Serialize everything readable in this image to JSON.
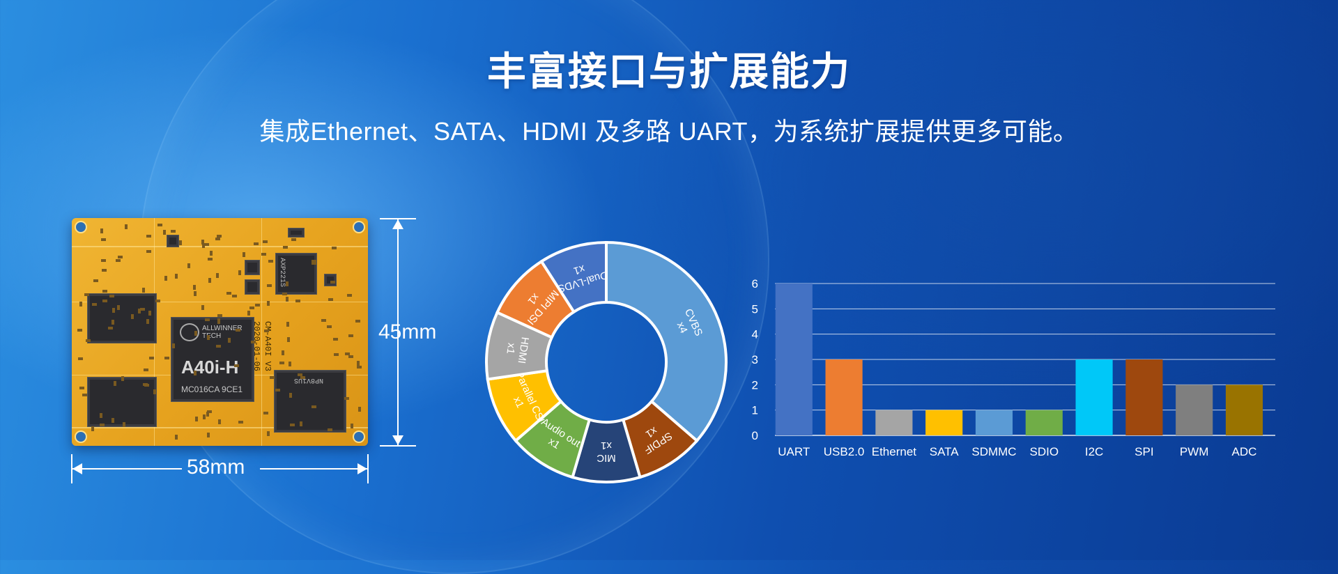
{
  "header": {
    "title": "丰富接口与扩展能力",
    "subtitle": "集成Ethernet、SATA、HDMI 及多路 UART，为系统扩展提供更多可能。"
  },
  "board": {
    "chip_brand_line1": "ALLWINNER",
    "chip_brand_line2": "TECH",
    "chip_model": "A40i-H",
    "chip_code": "MC016CA 9CE1",
    "side_text_date": "2020-01-06",
    "side_text_version": "CM-A40I V3",
    "pmic_label": "AXP221S",
    "flash_label": "NP8V1US",
    "width_label": "58mm",
    "height_label": "45mm"
  },
  "chart_data": [
    {
      "type": "pie",
      "donut": true,
      "slices": [
        {
          "label": "CVBS",
          "count_label": "x4",
          "value": 4,
          "color": "#5b9bd5"
        },
        {
          "label": "SPDIF",
          "count_label": "x1",
          "value": 1,
          "color": "#9e480e"
        },
        {
          "label": "MIC",
          "count_label": "x1",
          "value": 1,
          "color": "#264478"
        },
        {
          "label": "Audio out",
          "count_label": "x1",
          "value": 1,
          "color": "#70ad47"
        },
        {
          "label": "Parallel CSI",
          "count_label": "x1",
          "value": 1,
          "color": "#ffc000"
        },
        {
          "label": "HDMI",
          "count_label": "x1",
          "value": 1,
          "color": "#a5a5a5"
        },
        {
          "label": "MIPI DSI",
          "count_label": "x1",
          "value": 1,
          "color": "#ed7d31"
        },
        {
          "label": "Dual-LVDS",
          "count_label": "x1",
          "value": 1,
          "color": "#4472c4"
        }
      ]
    },
    {
      "type": "bar",
      "categories": [
        "UART",
        "USB2.0",
        "Ethernet",
        "SATA",
        "SDMMC",
        "SDIO",
        "I2C",
        "SPI",
        "PWM",
        "ADC"
      ],
      "values": [
        6,
        3,
        1,
        1,
        1,
        1,
        3,
        3,
        2,
        2
      ],
      "colors": [
        "#4472c4",
        "#ed7d31",
        "#a5a5a5",
        "#ffc000",
        "#5b9bd5",
        "#70ad47",
        "#00c8f8",
        "#9e480e",
        "#7f7f7f",
        "#997300"
      ],
      "ylim": [
        0,
        6
      ],
      "yticks": [
        0,
        1,
        2,
        3,
        4,
        5,
        6
      ],
      "grid": true
    }
  ]
}
